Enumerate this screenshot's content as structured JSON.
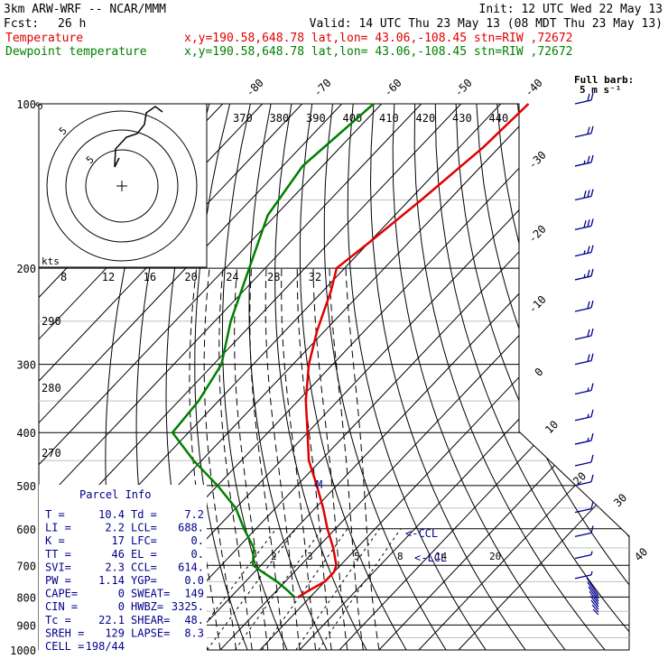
{
  "header": {
    "model": "3km ARW-WRF -- NCAR/MMM",
    "init": "Init: 12 UTC Wed 22 May 13",
    "fcst_label": "Fcst:",
    "fcst_value": "26 h",
    "valid": "Valid: 14 UTC Thu 23 May 13 (08 MDT Thu 23 May 13)",
    "lines": [
      {
        "name": "Temperature",
        "color": "#e00000",
        "info": "x,y=190.58,648.78    lat,lon= 43.06,-108.45  stn=RIW ,72672"
      },
      {
        "name": "Dewpoint temperature",
        "color": "#008000",
        "info": "x,y=190.58,648.78    lat,lon= 43.06,-108.45  stn=RIW ,72672"
      }
    ]
  },
  "barb_title": "Full barb:",
  "barb_units": "5 m s⁻¹",
  "hodo_units": "kts",
  "hodo_ring_labels": [
    "5",
    "5",
    "5"
  ],
  "parcel": {
    "title": "Parcel Info",
    "rows": [
      [
        "T  =",
        "10.4",
        "Td =",
        "7.2"
      ],
      [
        "LI =",
        "2.2",
        "LCL=",
        "688."
      ],
      [
        "K  =",
        "17",
        "LFC=",
        "0."
      ],
      [
        "TT =",
        "46",
        "EL =",
        "0."
      ],
      [
        "SVI=",
        "2.3",
        "CCL=",
        "614."
      ],
      [
        "PW =",
        "1.14",
        "YGP=",
        "0.0"
      ],
      [
        "CAPE=",
        "0",
        "SWEAT=",
        "149"
      ],
      [
        "CIN =",
        "0",
        "HWBZ=",
        "3325."
      ],
      [
        "Tc  =",
        "22.1",
        "SHEAR=",
        "48."
      ],
      [
        "SREH =",
        "129",
        "LAPSE=",
        "8.3"
      ],
      [
        "CELL =",
        "198/44",
        "",
        ""
      ]
    ]
  },
  "markers": {
    "ccl": "<-CCL",
    "lcl": "<-LCL",
    "m": "M"
  },
  "colors": {
    "temperature": "#e00000",
    "dewpoint": "#008000",
    "wind": "#00008b",
    "grid": "#000000"
  },
  "chart_data": {
    "type": "line",
    "xlabel": "",
    "ylabel": "",
    "y_scale": "log-pressure",
    "ylim": [
      1000,
      100
    ],
    "pressure_levels": [
      100,
      200,
      300,
      400,
      500,
      600,
      700,
      800,
      900,
      1000
    ],
    "isotherm_labels": [
      "-80",
      "-70",
      "-60",
      "-50",
      "-40",
      "-30",
      "-20",
      "-10",
      "0",
      "10",
      "20",
      "30",
      "40"
    ],
    "theta_labels": [
      "370",
      "380",
      "390",
      "400",
      "410",
      "420",
      "430",
      "440"
    ],
    "theta_left_labels": [
      "290",
      "280",
      "270"
    ],
    "mixing_labels": [
      "2",
      "3",
      "5",
      "8",
      "14",
      "20"
    ],
    "hodo_speed_labels": [
      "8",
      "12",
      "16",
      "20",
      "24",
      "28",
      "32"
    ],
    "series": [
      {
        "name": "Temperature",
        "pressure": [
          100,
          120,
          150,
          180,
          200,
          220,
          260,
          300,
          350,
          400,
          450,
          500,
          550,
          600,
          650,
          700,
          720,
          750,
          780,
          800
        ],
        "temperature": [
          -53,
          -54,
          -57,
          -60,
          -62,
          -58,
          -52,
          -46,
          -38,
          -30,
          -23,
          -15,
          -8,
          -2,
          4,
          9,
          10,
          10,
          8,
          7
        ]
      },
      {
        "name": "Dewpoint temperature",
        "pressure": [
          100,
          130,
          160,
          200,
          250,
          300,
          350,
          400,
          450,
          500,
          550,
          600,
          650,
          700,
          720,
          750,
          780,
          800
        ],
        "temperature": [
          -92,
          -95,
          -92,
          -84,
          -76,
          -68,
          -65,
          -64,
          -52,
          -40,
          -30,
          -23,
          -16,
          -12,
          -8,
          -2,
          3,
          6
        ]
      }
    ],
    "wind_barbs": [
      {
        "p": 100,
        "spd": 20,
        "dir": 270
      },
      {
        "p": 115,
        "spd": 20,
        "dir": 270
      },
      {
        "p": 130,
        "spd": 25,
        "dir": 275
      },
      {
        "p": 150,
        "spd": 30,
        "dir": 280
      },
      {
        "p": 170,
        "spd": 30,
        "dir": 280
      },
      {
        "p": 190,
        "spd": 25,
        "dir": 285
      },
      {
        "p": 210,
        "spd": 25,
        "dir": 290
      },
      {
        "p": 240,
        "spd": 20,
        "dir": 290
      },
      {
        "p": 270,
        "spd": 20,
        "dir": 290
      },
      {
        "p": 300,
        "spd": 20,
        "dir": 290
      },
      {
        "p": 340,
        "spd": 15,
        "dir": 300
      },
      {
        "p": 380,
        "spd": 15,
        "dir": 300
      },
      {
        "p": 420,
        "spd": 15,
        "dir": 300
      },
      {
        "p": 460,
        "spd": 10,
        "dir": 300
      },
      {
        "p": 500,
        "spd": 10,
        "dir": 300
      },
      {
        "p": 560,
        "spd": 10,
        "dir": 300
      },
      {
        "p": 620,
        "spd": 10,
        "dir": 300
      },
      {
        "p": 680,
        "spd": 5,
        "dir": 300
      },
      {
        "p": 740,
        "spd": 5,
        "dir": 300
      }
    ]
  }
}
